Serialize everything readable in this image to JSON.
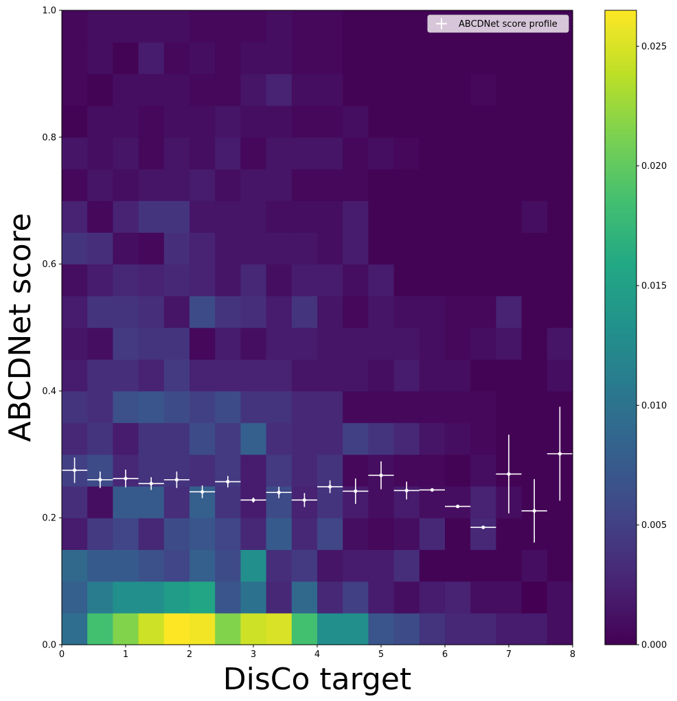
{
  "chart_data": {
    "type": "heatmap",
    "title": "",
    "xlabel": "DisCo target",
    "ylabel": "ABCDNet score",
    "xlim": [
      0,
      8
    ],
    "ylim": [
      0,
      1
    ],
    "x_ticks": [
      "0",
      "1",
      "2",
      "3",
      "4",
      "5",
      "6",
      "7",
      "8"
    ],
    "y_ticks": [
      "0.0",
      "0.2",
      "0.4",
      "0.6",
      "0.8",
      "1.0"
    ],
    "x_bin_edges": [
      0,
      0.4,
      0.8,
      1.2,
      1.6,
      2.0,
      2.4,
      2.8,
      3.2,
      3.6,
      4.0,
      4.4,
      4.8,
      5.2,
      5.6,
      6.0,
      6.4,
      6.8,
      7.2,
      7.6,
      8.0
    ],
    "y_bin_edges": [
      0,
      0.05,
      0.1,
      0.15,
      0.2,
      0.25,
      0.3,
      0.35,
      0.4,
      0.45,
      0.5,
      0.55,
      0.6,
      0.65,
      0.7,
      0.75,
      0.8,
      0.85,
      0.9,
      0.95,
      1.0
    ],
    "colorbar": {
      "colormap": "viridis",
      "range": [
        0,
        0.0265
      ],
      "ticks": [
        "0.000",
        "0.005",
        "0.010",
        "0.015",
        "0.020",
        "0.025"
      ],
      "tick_values": [
        0,
        0.005,
        0.01,
        0.015,
        0.02,
        0.025
      ]
    },
    "z_rows_bottom_to_top": [
      [
        0.0095,
        0.0185,
        0.0215,
        0.0245,
        0.0265,
        0.026,
        0.0215,
        0.0245,
        0.025,
        0.0185,
        0.013,
        0.013,
        0.007,
        0.006,
        0.004,
        0.003,
        0.003,
        0.002,
        0.002,
        0.001
      ],
      [
        0.008,
        0.011,
        0.013,
        0.013,
        0.0145,
        0.0155,
        0.007,
        0.01,
        0.003,
        0.009,
        0.003,
        0.005,
        0.002,
        0.001,
        0.002,
        0.0025,
        0.001,
        0.001,
        0.0,
        0.001
      ],
      [
        0.009,
        0.0075,
        0.0075,
        0.0065,
        0.0055,
        0.008,
        0.006,
        0.013,
        0.0035,
        0.0045,
        0.0015,
        0.002,
        0.002,
        0.0035,
        0.0002,
        0.0002,
        0.0002,
        0.0002,
        0.001,
        0.0002
      ],
      [
        0.002,
        0.0045,
        0.0055,
        0.003,
        0.006,
        0.007,
        0.0055,
        0.003,
        0.0075,
        0.003,
        0.0055,
        0.001,
        0.0005,
        0.001,
        0.003,
        0.0002,
        0.003,
        0.0002,
        0.0002,
        0.0002
      ],
      [
        0.0035,
        0.001,
        0.0075,
        0.0075,
        0.0035,
        0.008,
        0.004,
        0.002,
        0.006,
        0.0025,
        0.004,
        0.002,
        0.001,
        0.002,
        0.001,
        0.001,
        0.0025,
        0.001,
        0.0002,
        0.0002
      ],
      [
        0.005,
        0.006,
        0.003,
        0.004,
        0.004,
        0.0035,
        0.0045,
        0.002,
        0.0045,
        0.003,
        0.004,
        0.0005,
        0.001,
        0.0005,
        0.0005,
        0.0002,
        0.001,
        0.0002,
        0.0002,
        0.0002
      ],
      [
        0.003,
        0.004,
        0.002,
        0.004,
        0.004,
        0.006,
        0.0045,
        0.008,
        0.0035,
        0.003,
        0.003,
        0.005,
        0.004,
        0.003,
        0.0015,
        0.001,
        0.0005,
        0.0002,
        0.0002,
        0.0002
      ],
      [
        0.004,
        0.0035,
        0.0065,
        0.007,
        0.006,
        0.005,
        0.006,
        0.004,
        0.004,
        0.003,
        0.003,
        0.0005,
        0.0005,
        0.0005,
        0.0005,
        0.0005,
        0.0005,
        0.0002,
        0.0002,
        0.0002
      ],
      [
        0.002,
        0.0035,
        0.0035,
        0.0025,
        0.0045,
        0.0025,
        0.0025,
        0.0025,
        0.0025,
        0.0015,
        0.0015,
        0.0015,
        0.001,
        0.002,
        0.001,
        0.001,
        0.0002,
        0.0002,
        0.0002,
        0.001
      ],
      [
        0.0015,
        0.001,
        0.0045,
        0.004,
        0.004,
        0.0005,
        0.002,
        0.001,
        0.002,
        0.002,
        0.0015,
        0.0015,
        0.0015,
        0.0015,
        0.001,
        0.0005,
        0.001,
        0.0015,
        0.0002,
        0.0015
      ],
      [
        0.002,
        0.004,
        0.004,
        0.0035,
        0.0015,
        0.006,
        0.004,
        0.0035,
        0.002,
        0.004,
        0.0015,
        0.0005,
        0.0015,
        0.001,
        0.001,
        0.0005,
        0.0005,
        0.0025,
        0.0002,
        0.0002
      ],
      [
        0.001,
        0.002,
        0.003,
        0.0025,
        0.003,
        0.0025,
        0.0015,
        0.003,
        0.001,
        0.002,
        0.002,
        0.001,
        0.002,
        0.0002,
        0.0002,
        0.0002,
        0.0002,
        0.0002,
        0.0002,
        0.0002
      ],
      [
        0.004,
        0.0035,
        0.001,
        0.0005,
        0.0035,
        0.0025,
        0.0015,
        0.0015,
        0.0015,
        0.0015,
        0.001,
        0.002,
        0.0002,
        0.0002,
        0.0002,
        0.0002,
        0.0002,
        0.0002,
        0.0002,
        0.0002
      ],
      [
        0.0025,
        0.0005,
        0.0025,
        0.004,
        0.004,
        0.0015,
        0.0015,
        0.0015,
        0.001,
        0.001,
        0.001,
        0.002,
        0.0002,
        0.0002,
        0.0002,
        0.0002,
        0.0002,
        0.0002,
        0.001,
        0.0002
      ],
      [
        0.0005,
        0.0015,
        0.001,
        0.0015,
        0.0015,
        0.002,
        0.001,
        0.0015,
        0.0015,
        0.0005,
        0.0005,
        0.0005,
        0.0002,
        0.0002,
        0.0002,
        0.0002,
        0.0002,
        0.0002,
        0.0002,
        0.0002
      ],
      [
        0.0015,
        0.001,
        0.0015,
        0.0005,
        0.0015,
        0.001,
        0.002,
        0.0005,
        0.0015,
        0.0015,
        0.0015,
        0.0005,
        0.001,
        0.0005,
        0.0002,
        0.0002,
        0.0002,
        0.0002,
        0.0002,
        0.0002
      ],
      [
        0.0002,
        0.001,
        0.001,
        0.0005,
        0.001,
        0.001,
        0.0015,
        0.001,
        0.001,
        0.0005,
        0.0005,
        0.001,
        0.0002,
        0.0002,
        0.0002,
        0.0002,
        0.0002,
        0.0002,
        0.0002,
        0.0002
      ],
      [
        0.0005,
        0.0002,
        0.001,
        0.001,
        0.001,
        0.0005,
        0.0005,
        0.0015,
        0.0025,
        0.001,
        0.001,
        0.0002,
        0.0002,
        0.0002,
        0.0002,
        0.0002,
        0.0005,
        0.0002,
        0.0002,
        0.0002
      ],
      [
        0.0005,
        0.001,
        0.0002,
        0.002,
        0.0005,
        0.001,
        0.0005,
        0.001,
        0.001,
        0.0005,
        0.0005,
        0.0002,
        0.0002,
        0.0002,
        0.0002,
        0.0002,
        0.0002,
        0.0002,
        0.0002,
        0.0002
      ],
      [
        0.0005,
        0.001,
        0.001,
        0.001,
        0.001,
        0.0005,
        0.0005,
        0.0005,
        0.001,
        0.0005,
        0.0005,
        0.0002,
        0.0002,
        0.0002,
        0.0002,
        0.0002,
        0.0002,
        0.0002,
        0.0002,
        0.0002
      ]
    ],
    "series": [
      {
        "name": "ABCDNet score profile",
        "type": "errorbar",
        "color": "#ffffff",
        "x": [
          0.2,
          0.6,
          1.0,
          1.4,
          1.8,
          2.2,
          2.6,
          3.0,
          3.4,
          3.8,
          4.2,
          4.6,
          5.0,
          5.4,
          5.8,
          6.2,
          6.6,
          7.0,
          7.4,
          7.8
        ],
        "x_err": 0.2,
        "y": [
          0.275,
          0.26,
          0.262,
          0.254,
          0.26,
          0.241,
          0.257,
          0.228,
          0.24,
          0.228,
          0.249,
          0.242,
          0.267,
          0.243,
          0.244,
          0.218,
          0.185,
          0.269,
          0.211,
          0.301
        ],
        "y_err": [
          0.02,
          0.013,
          0.014,
          0.01,
          0.013,
          0.01,
          0.009,
          0.004,
          0.009,
          0.011,
          0.01,
          0.02,
          0.022,
          0.014,
          0.002,
          0.002,
          0.002,
          0.062,
          0.05,
          0.074
        ]
      }
    ],
    "legend": {
      "placement": "top-right",
      "label": "ABCDNet score profile"
    }
  }
}
